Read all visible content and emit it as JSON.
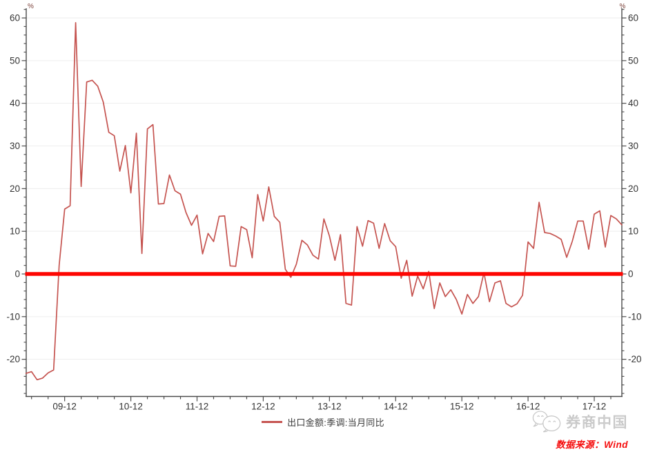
{
  "chart_data": {
    "type": "line",
    "title": "",
    "unit_left": "%",
    "unit_right": "%",
    "x_tick_labels": [
      "09-12",
      "10-12",
      "11-12",
      "12-12",
      "13-12",
      "14-12",
      "15-12",
      "16-12",
      "17-12"
    ],
    "x_minor_tick_interval_months": 3,
    "y_ticks": [
      60,
      50,
      40,
      30,
      20,
      10,
      0,
      -10,
      -20
    ],
    "y_minor_tick_step": 2,
    "ylim": [
      -28.5,
      62.5
    ],
    "grid": "horizontal",
    "legend_position": "bottom-center",
    "zero_line": {
      "value": 0,
      "color": "#fe0602"
    },
    "series": [
      {
        "name": "出口金额:季调:当月同比",
        "color": "#c5534f",
        "frequency": "monthly",
        "values": [
          -23.3,
          -22.9,
          -24.8,
          -24.4,
          -23.2,
          -22.5,
          2.0,
          15.2,
          16.0,
          58.9,
          20.5,
          45.0,
          45.4,
          44.0,
          40.3,
          33.2,
          32.4,
          24.1,
          30.1,
          19.0,
          33.0,
          4.8,
          34.0,
          35.0,
          16.4,
          16.5,
          23.2,
          19.5,
          18.7,
          14.4,
          11.4,
          13.8,
          4.7,
          9.5,
          7.6,
          13.5,
          13.6,
          1.9,
          1.8,
          11.1,
          10.4,
          3.8,
          18.6,
          12.4,
          20.4,
          13.5,
          12.1,
          1.1,
          -0.8,
          2.3,
          7.9,
          6.8,
          4.4,
          3.5,
          12.9,
          8.9,
          3.2,
          9.2,
          -6.9,
          -7.3,
          11.1,
          6.5,
          12.5,
          11.9,
          6.0,
          11.8,
          7.8,
          6.4,
          -1.0,
          3.2,
          -5.2,
          -0.5,
          -3.5,
          0.6,
          -8.1,
          -2.1,
          -5.3,
          -3.7,
          -6.0,
          -9.4,
          -4.8,
          -6.9,
          -5.3,
          0.3,
          -6.5,
          -2.1,
          -1.6,
          -6.9,
          -7.7,
          -7.0,
          -5.0,
          7.5,
          6.0,
          16.8,
          9.7,
          9.5,
          8.9,
          8.1,
          3.9,
          7.6,
          12.4,
          12.4,
          5.8,
          14.0,
          14.8,
          6.3,
          13.7,
          12.9,
          11.5
        ]
      }
    ]
  },
  "legend": {
    "label": "出口金额:季调:当月同比"
  },
  "footer": {
    "brand": "券商中国",
    "source": "数据来源：Wind"
  },
  "colors": {
    "series": "#c5534f",
    "zero_line": "#fe0602",
    "grid": "#ededed",
    "axis": "#4a4a4a",
    "tick_label": "#333333",
    "percent_label": "#7a3f37",
    "legend_text": "#3a3a3a",
    "brand_gray": "#c9c9c9",
    "source_red": "#f50d0d"
  }
}
